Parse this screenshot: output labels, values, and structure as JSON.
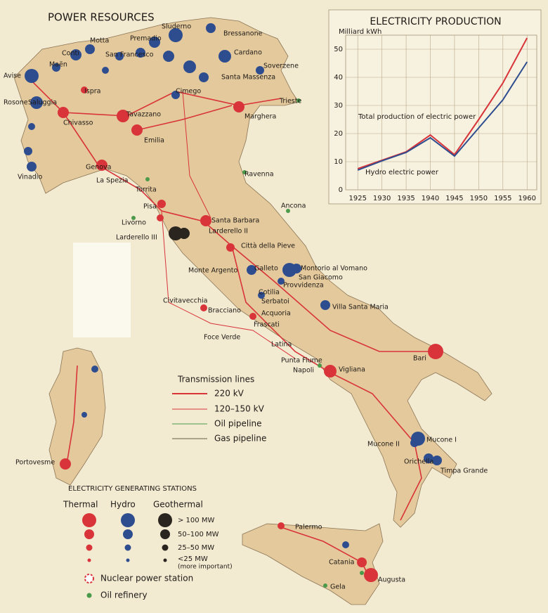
{
  "title": "POWER RESOURCES",
  "chart_data": {
    "type": "line",
    "title": "ELECTRICITY PRODUCTION",
    "y_label": "Milliard kWh",
    "x": [
      1925,
      1930,
      1935,
      1940,
      1945,
      1950,
      1955,
      1960
    ],
    "series": [
      {
        "name": "Total production of electric power",
        "color": "#d8343a",
        "values": [
          7.5,
          10.5,
          13.5,
          19.5,
          12.5,
          25,
          38,
          54
        ]
      },
      {
        "name": "Hydro electric power",
        "color": "#2e4d8f",
        "values": [
          7,
          10.3,
          13.3,
          18.5,
          12,
          22,
          32,
          45.5
        ]
      }
    ],
    "xlim": [
      1922.5,
      1962
    ],
    "xticks": [
      1925,
      1930,
      1935,
      1940,
      1945,
      1950,
      1955,
      1960
    ],
    "ylim": [
      0,
      55
    ],
    "yticks": [
      0,
      10,
      20,
      30,
      40,
      50
    ],
    "grid": true
  },
  "places": [
    "Motta",
    "Conti",
    "Maën",
    "Avise",
    "San Francesco",
    "Sluderno",
    "Premadio",
    "Bressanone",
    "Cardano",
    "Soverzene",
    "Santa Massenza",
    "Ispra",
    "Rosone",
    "Saluggia",
    "Chivasso",
    "Tavazzano",
    "Cimego",
    "Trieste",
    "Marghera",
    "Emilia",
    "Genova",
    "Vinadio",
    "La Spezia",
    "Torrita",
    "Ravenna",
    "Ancona",
    "Pisa",
    "Livorno",
    "Larderello III",
    "Santa Barbara",
    "Larderello II",
    "Città della Pieve",
    "Monte Argento",
    "Galleto",
    "Montorio al Vomano",
    "San Giacomo",
    "Provvidenza",
    "Cotilia",
    "Serbatoi",
    "Civitavecchia",
    "Bracciano",
    "Acquoria",
    "Villa Santa Maria",
    "Frascati",
    "Foce Verde",
    "Latina",
    "Punta Fiume",
    "Napoli",
    "Vigliana",
    "Bari",
    "Portovesme",
    "Mucone II",
    "Mucone I",
    "Orichella",
    "Timpa Grande",
    "Palermo",
    "Catania",
    "Augusta",
    "Gela"
  ],
  "legend": {
    "lines_title": "Transmission lines",
    "lines": [
      "220 kV",
      "120–150 kV",
      "Oil pipeline",
      "Gas pipeline"
    ],
    "stations_title": "ELECTRICITY GENERATING STATIONS",
    "columns": [
      "Thermal",
      "Hydro",
      "Geothermal"
    ],
    "sizes": [
      "> 100 MW",
      "50–100 MW",
      "25–50 MW",
      "<25 MW"
    ],
    "sizes_note": "(more important)",
    "nuclear": "Nuclear power station",
    "refinery": "Oil refinery"
  }
}
